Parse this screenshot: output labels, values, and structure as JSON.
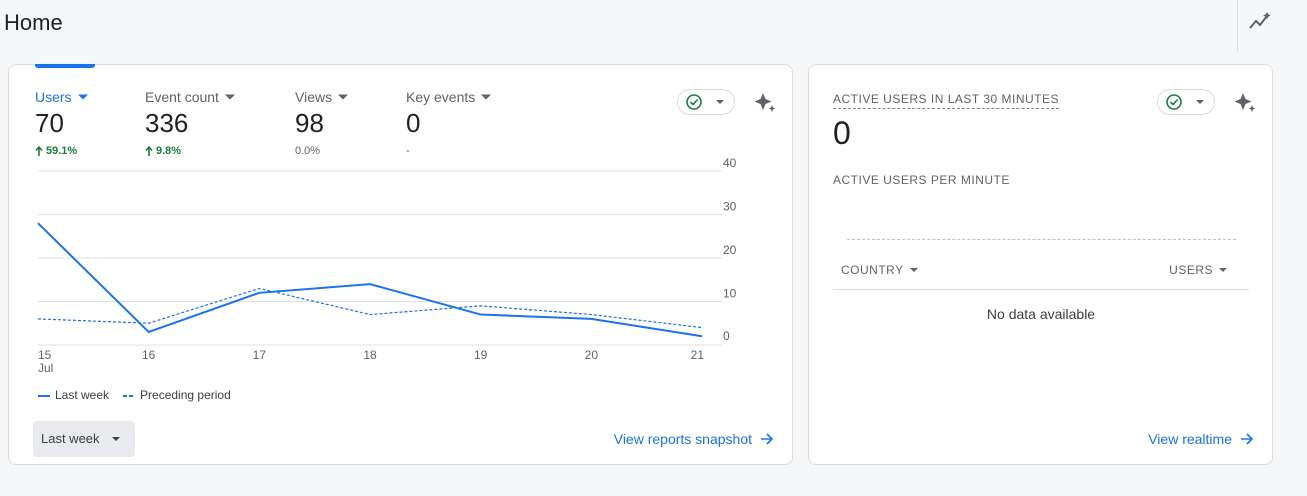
{
  "header": {
    "title": "Home"
  },
  "overview_card": {
    "metrics": [
      {
        "label": "Users",
        "value": "70",
        "change": "59.1%"
      },
      {
        "label": "Event count",
        "value": "336",
        "change": "9.8%"
      },
      {
        "label": "Views",
        "value": "98",
        "change": "0.0%"
      },
      {
        "label": "Key events",
        "value": "0",
        "change": "-"
      }
    ],
    "chart_data": {
      "type": "line",
      "categories": [
        "15",
        "16",
        "17",
        "18",
        "19",
        "20",
        "21"
      ],
      "x_sublabel": "Jul",
      "series": [
        {
          "name": "Last week",
          "color": "#1a73e8",
          "values": [
            28,
            3,
            12,
            14,
            7,
            6,
            2
          ]
        },
        {
          "name": "Preceding period",
          "color": "#1a73e8",
          "dashed": true,
          "values": [
            6,
            5,
            13,
            7,
            9,
            7,
            4
          ]
        }
      ],
      "ylim": [
        0,
        40
      ],
      "yticks": [
        0,
        10,
        20,
        30,
        40
      ],
      "grid": true,
      "y_axis_side": "right"
    },
    "date_range": "Last week",
    "link": "View reports snapshot"
  },
  "realtime_card": {
    "title": "ACTIVE USERS IN LAST 30 MINUTES",
    "value": "0",
    "subtitle": "ACTIVE USERS PER MINUTE",
    "table": {
      "headers": [
        "COUNTRY",
        "USERS"
      ],
      "empty": "No data available"
    },
    "link": "View realtime"
  }
}
